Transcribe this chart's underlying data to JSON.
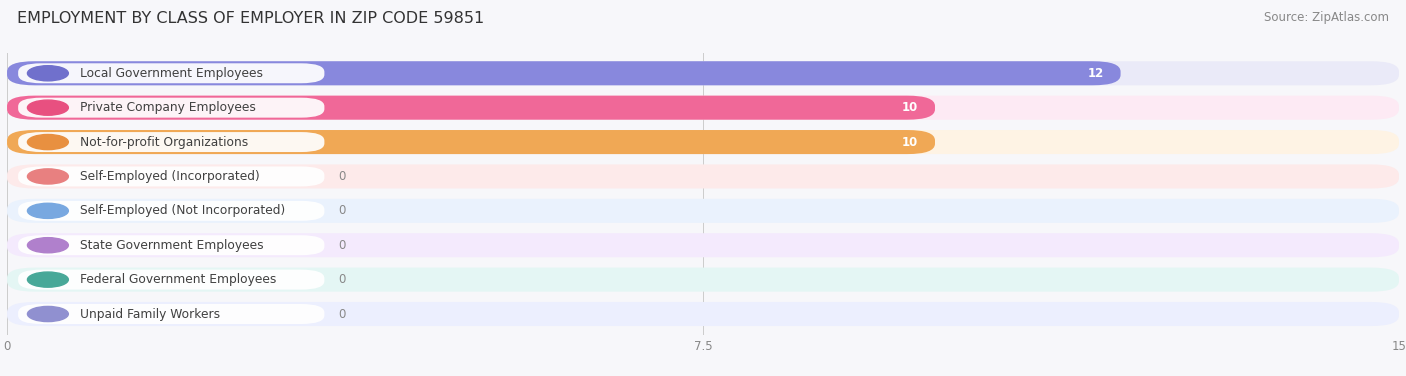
{
  "title": "EMPLOYMENT BY CLASS OF EMPLOYER IN ZIP CODE 59851",
  "source": "Source: ZipAtlas.com",
  "categories": [
    "Local Government Employees",
    "Private Company Employees",
    "Not-for-profit Organizations",
    "Self-Employed (Incorporated)",
    "Self-Employed (Not Incorporated)",
    "State Government Employees",
    "Federal Government Employees",
    "Unpaid Family Workers"
  ],
  "values": [
    12,
    10,
    10,
    0,
    0,
    0,
    0,
    0
  ],
  "bar_colors": [
    "#8888dd",
    "#f06898",
    "#f0a855",
    "#f0a0a0",
    "#90bce8",
    "#c098d8",
    "#5bbdb0",
    "#a0aae0"
  ],
  "bar_bg_colors": [
    "#eaeaf8",
    "#fdeaf4",
    "#fef3e4",
    "#fdeaea",
    "#eaf2fd",
    "#f4eafd",
    "#e4f6f4",
    "#eceffe"
  ],
  "label_circle_colors": [
    "#7070cc",
    "#e85080",
    "#e89040",
    "#e88080",
    "#78a8e0",
    "#b080cc",
    "#48a898",
    "#9090d0"
  ],
  "xlim": [
    0,
    15
  ],
  "xticks": [
    0,
    7.5,
    15
  ],
  "background_color": "#f7f7fa",
  "title_fontsize": 11.5,
  "label_fontsize": 8.8,
  "value_fontsize": 8.5,
  "source_fontsize": 8.5
}
